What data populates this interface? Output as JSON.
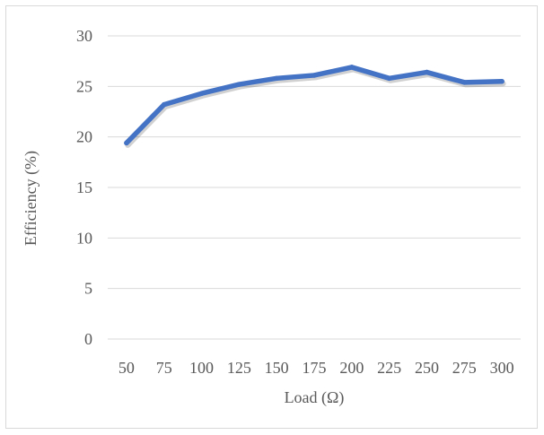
{
  "chart_data": {
    "type": "line",
    "title": "",
    "xlabel": "Load (Ω)",
    "ylabel": "Efficiency (%)",
    "x": [
      50,
      75,
      100,
      125,
      150,
      175,
      200,
      225,
      250,
      275,
      300
    ],
    "series": [
      {
        "values": [
          19.4,
          23.2,
          24.3,
          25.2,
          25.8,
          26.1,
          26.9,
          25.8,
          26.4,
          25.4,
          25.5
        ],
        "color": "#4472c4"
      }
    ],
    "ylim": [
      0,
      30
    ],
    "yticks": [
      0,
      5,
      10,
      15,
      20,
      25,
      30
    ],
    "grid": true,
    "legend": "none"
  }
}
